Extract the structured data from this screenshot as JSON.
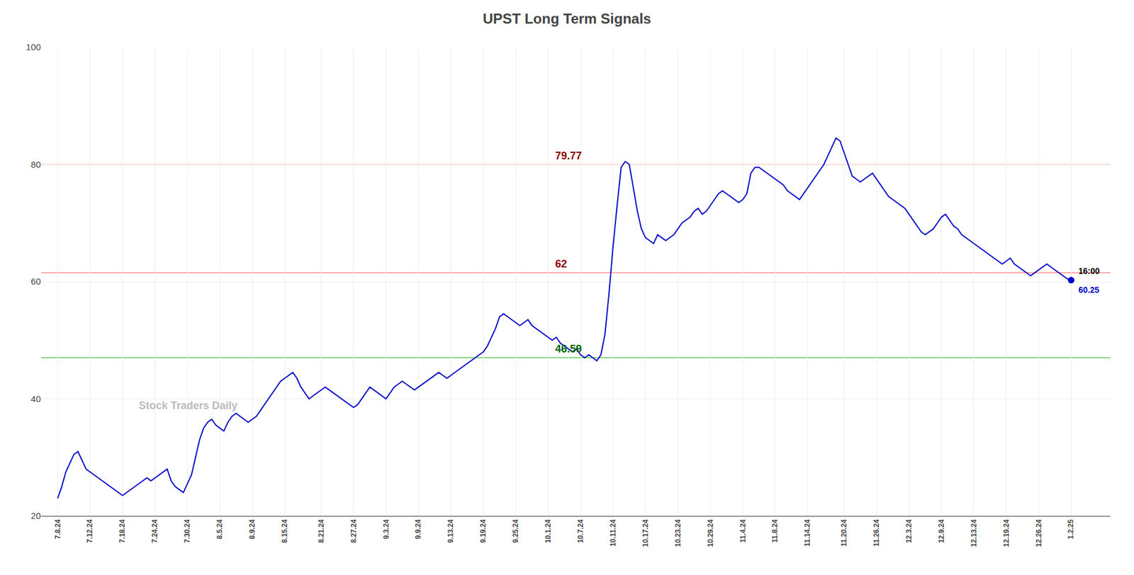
{
  "chart_data": {
    "type": "line",
    "title": "UPST Long Term Signals",
    "color": "#0000cc",
    "grid": true,
    "ylim": [
      20,
      100
    ],
    "yticks": [
      20,
      40,
      60,
      80,
      100
    ],
    "categories": [
      "7.8.24",
      null,
      null,
      null,
      null,
      null,
      null,
      null,
      "7.12.24",
      null,
      null,
      null,
      null,
      null,
      null,
      null,
      "7.18.24",
      null,
      null,
      null,
      null,
      null,
      null,
      null,
      "7.24.24",
      null,
      null,
      null,
      null,
      null,
      null,
      null,
      "7.30.24",
      null,
      null,
      null,
      null,
      null,
      null,
      null,
      "8.5.24",
      null,
      null,
      null,
      null,
      null,
      null,
      null,
      "8.9.24",
      null,
      null,
      null,
      null,
      null,
      null,
      null,
      "8.15.24",
      null,
      null,
      null,
      null,
      null,
      null,
      null,
      null,
      "8.21.24",
      null,
      null,
      null,
      null,
      null,
      null,
      null,
      "8.27.24",
      null,
      null,
      null,
      null,
      null,
      null,
      null,
      "9.3.24",
      null,
      null,
      null,
      null,
      null,
      null,
      null,
      "9.9.24",
      null,
      null,
      null,
      null,
      null,
      null,
      null,
      "9.13.24",
      null,
      null,
      null,
      null,
      null,
      null,
      null,
      "9.19.24",
      null,
      null,
      null,
      null,
      null,
      null,
      null,
      "9.25.24",
      null,
      null,
      null,
      null,
      null,
      null,
      null,
      "10.1.24",
      null,
      null,
      null,
      null,
      null,
      null,
      null,
      "10.7.24",
      null,
      null,
      null,
      null,
      null,
      null,
      null,
      "10.11.24",
      null,
      null,
      null,
      null,
      null,
      null,
      null,
      "10.17.24",
      null,
      null,
      null,
      null,
      null,
      null,
      null,
      "10.23.24",
      null,
      null,
      null,
      null,
      null,
      null,
      null,
      "10.29.24",
      null,
      null,
      null,
      null,
      null,
      null,
      null,
      "11.4.24",
      null,
      null,
      null,
      null,
      null,
      null,
      null,
      "11.8.24",
      null,
      null,
      null,
      null,
      null,
      null,
      null,
      "11.14.24",
      null,
      null,
      null,
      null,
      null,
      null,
      null,
      null,
      "11.20.24",
      null,
      null,
      null,
      null,
      null,
      null,
      null,
      "11.26.24",
      null,
      null,
      null,
      null,
      null,
      null,
      null,
      "12.3.24",
      null,
      null,
      null,
      null,
      null,
      null,
      null,
      "12.9.24",
      null,
      null,
      null,
      null,
      null,
      null,
      null,
      "12.13.24",
      null,
      null,
      null,
      null,
      null,
      null,
      null,
      "12.19.24",
      null,
      null,
      null,
      null,
      null,
      null,
      null,
      "12.26.24",
      null,
      null,
      null,
      null,
      null,
      null,
      null,
      "1.2.25"
    ],
    "values": [
      23.0,
      25.0,
      27.5,
      29.0,
      30.5,
      31.0,
      29.5,
      28.0,
      27.5,
      27.0,
      26.5,
      26.0,
      25.5,
      25.0,
      24.5,
      24.0,
      23.5,
      24.0,
      24.5,
      25.0,
      25.5,
      26.0,
      26.5,
      26.0,
      26.5,
      27.0,
      27.5,
      28.0,
      26.0,
      25.0,
      24.5,
      24.0,
      25.5,
      27.0,
      30.0,
      33.0,
      35.0,
      36.0,
      36.5,
      35.5,
      35.0,
      34.5,
      36.0,
      37.0,
      37.5,
      37.0,
      36.5,
      36.0,
      36.5,
      37.0,
      38.0,
      39.0,
      40.0,
      41.0,
      42.0,
      43.0,
      43.5,
      44.0,
      44.5,
      43.5,
      42.0,
      41.0,
      40.0,
      40.5,
      41.0,
      41.5,
      42.0,
      41.5,
      41.0,
      40.5,
      40.0,
      39.5,
      39.0,
      38.5,
      39.0,
      40.0,
      41.0,
      42.0,
      41.5,
      41.0,
      40.5,
      40.0,
      41.0,
      42.0,
      42.5,
      43.0,
      42.5,
      42.0,
      41.5,
      42.0,
      42.5,
      43.0,
      43.5,
      44.0,
      44.5,
      44.0,
      43.5,
      44.0,
      44.5,
      45.0,
      45.5,
      46.0,
      46.59,
      47.0,
      47.5,
      48.0,
      49.0,
      50.5,
      52.0,
      54.0,
      54.5,
      54.0,
      53.5,
      53.0,
      52.5,
      53.0,
      53.5,
      52.5,
      52.0,
      51.5,
      51.0,
      50.5,
      50.0,
      50.5,
      49.5,
      49.0,
      48.5,
      48.0,
      48.5,
      47.5,
      47.0,
      47.5,
      47.0,
      46.5,
      47.5,
      51.0,
      58.0,
      66.0,
      73.0,
      79.5,
      80.5,
      80.0,
      76.0,
      72.0,
      69.0,
      67.5,
      67.0,
      66.5,
      68.0,
      67.5,
      67.0,
      67.5,
      68.0,
      69.0,
      70.0,
      70.5,
      71.0,
      72.0,
      72.5,
      71.5,
      72.0,
      73.0,
      74.0,
      75.0,
      75.5,
      75.0,
      74.5,
      74.0,
      73.5,
      74.0,
      75.0,
      78.5,
      79.5,
      79.5,
      79.0,
      78.5,
      78.0,
      77.5,
      77.0,
      76.5,
      75.5,
      75.0,
      74.5,
      74.0,
      75.0,
      76.0,
      77.0,
      78.0,
      79.0,
      80.0,
      81.5,
      83.0,
      84.5,
      84.0,
      82.0,
      80.0,
      78.0,
      77.5,
      77.0,
      77.5,
      78.0,
      78.5,
      77.5,
      76.5,
      75.5,
      74.5,
      74.0,
      73.5,
      73.0,
      72.5,
      71.5,
      70.5,
      69.5,
      68.5,
      68.0,
      68.5,
      69.0,
      70.0,
      71.0,
      71.5,
      70.5,
      69.5,
      69.0,
      68.0,
      67.5,
      67.0,
      66.5,
      66.0,
      65.5,
      65.0,
      64.5,
      64.0,
      63.5,
      63.0,
      63.5,
      64.0,
      63.0,
      62.5,
      62.0,
      61.5,
      61.0,
      61.5,
      62.0,
      62.5,
      63.0,
      62.5,
      62.0,
      61.5,
      61.0,
      60.5,
      60.25
    ],
    "hlines": [
      {
        "value": 47.0,
        "color": "#55cc55",
        "annotation": "46.59",
        "annotation_color": "#006600"
      },
      {
        "value": 80.0,
        "color": "#ff8888",
        "annotation": "79.77",
        "annotation_color": "#8b0000"
      },
      {
        "value": 61.5,
        "color": "#ff8888",
        "annotation": "62",
        "annotation_color": "#8b0000"
      }
    ],
    "last_point": {
      "time": "16:00",
      "value": 60.25,
      "label": "60.25"
    },
    "watermark": {
      "text": "Stock Traders Daily",
      "color": "#bbbbbb"
    }
  }
}
